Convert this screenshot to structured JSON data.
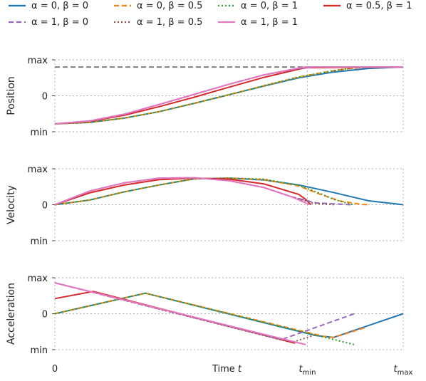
{
  "chart_data": {
    "type": "line",
    "xlabel": "Time t",
    "x_ticks": [
      "0",
      "t_min",
      "t_max"
    ],
    "x_range": [
      0,
      1
    ],
    "t_min": 0.725,
    "t_max": 1.0,
    "grid": true,
    "legend_placement": "top, above plots",
    "legend": [
      {
        "key": "s1",
        "label": "α = 0, β = 0",
        "color": "#1f77b4",
        "style": "solid"
      },
      {
        "key": "s2",
        "label": "α = 0, β = 0.5",
        "color": "#ff7f0e",
        "style": "dashed"
      },
      {
        "key": "s3",
        "label": "α = 0, β = 1",
        "color": "#2ca02c",
        "style": "dotted"
      },
      {
        "key": "s4",
        "label": "α = 0.5, β = 1",
        "color": "#d62728",
        "style": "solid"
      },
      {
        "key": "s5",
        "label": "α = 1, β = 0",
        "color": "#9467bd",
        "style": "dashed"
      },
      {
        "key": "s6",
        "label": "α = 1, β = 0.5",
        "color": "#8c564b",
        "style": "dotted"
      },
      {
        "key": "s7",
        "label": "α = 1, β = 1",
        "color": "#e377c2",
        "style": "solid"
      }
    ],
    "panels": [
      {
        "ylabel": "Position",
        "y_ticks": [
          "max",
          "0",
          "min"
        ],
        "y_range": [
          -1,
          1
        ],
        "reference_line": {
          "y": 0.8,
          "color": "#7f7f7f",
          "style": "dashed"
        },
        "series": [
          {
            "key": "s1",
            "points": [
              [
                0,
                -0.78
              ],
              [
                0.1,
                -0.74
              ],
              [
                0.2,
                -0.62
              ],
              [
                0.3,
                -0.44
              ],
              [
                0.4,
                -0.21
              ],
              [
                0.5,
                0.03
              ],
              [
                0.6,
                0.27
              ],
              [
                0.7,
                0.5
              ],
              [
                0.8,
                0.66
              ],
              [
                0.9,
                0.76
              ],
              [
                1.0,
                0.8
              ]
            ]
          },
          {
            "key": "s2",
            "points": [
              [
                0,
                -0.78
              ],
              [
                0.1,
                -0.74
              ],
              [
                0.2,
                -0.62
              ],
              [
                0.3,
                -0.44
              ],
              [
                0.4,
                -0.21
              ],
              [
                0.5,
                0.03
              ],
              [
                0.6,
                0.28
              ],
              [
                0.7,
                0.52
              ],
              [
                0.8,
                0.7
              ],
              [
                0.88,
                0.79
              ],
              [
                1.0,
                0.8
              ]
            ]
          },
          {
            "key": "s3",
            "points": [
              [
                0,
                -0.78
              ],
              [
                0.1,
                -0.74
              ],
              [
                0.2,
                -0.62
              ],
              [
                0.3,
                -0.44
              ],
              [
                0.4,
                -0.21
              ],
              [
                0.5,
                0.03
              ],
              [
                0.6,
                0.28
              ],
              [
                0.7,
                0.52
              ],
              [
                0.8,
                0.7
              ],
              [
                0.86,
                0.78
              ],
              [
                1.0,
                0.8
              ]
            ]
          },
          {
            "key": "s4",
            "points": [
              [
                0,
                -0.78
              ],
              [
                0.1,
                -0.71
              ],
              [
                0.2,
                -0.54
              ],
              [
                0.3,
                -0.3
              ],
              [
                0.4,
                -0.04
              ],
              [
                0.5,
                0.24
              ],
              [
                0.6,
                0.51
              ],
              [
                0.7,
                0.74
              ],
              [
                0.72,
                0.78
              ],
              [
                1.0,
                0.8
              ]
            ]
          },
          {
            "key": "s5",
            "points": [
              [
                0,
                -0.78
              ],
              [
                0.1,
                -0.7
              ],
              [
                0.2,
                -0.51
              ],
              [
                0.3,
                -0.24
              ],
              [
                0.4,
                0.04
              ],
              [
                0.5,
                0.32
              ],
              [
                0.6,
                0.58
              ],
              [
                0.7,
                0.76
              ],
              [
                0.75,
                0.8
              ],
              [
                1.0,
                0.8
              ]
            ]
          },
          {
            "key": "s6",
            "points": [
              [
                0,
                -0.78
              ],
              [
                0.1,
                -0.7
              ],
              [
                0.2,
                -0.51
              ],
              [
                0.3,
                -0.24
              ],
              [
                0.4,
                0.04
              ],
              [
                0.5,
                0.32
              ],
              [
                0.6,
                0.58
              ],
              [
                0.7,
                0.76
              ],
              [
                0.73,
                0.8
              ],
              [
                1.0,
                0.8
              ]
            ]
          },
          {
            "key": "s7",
            "points": [
              [
                0,
                -0.78
              ],
              [
                0.1,
                -0.7
              ],
              [
                0.2,
                -0.51
              ],
              [
                0.3,
                -0.24
              ],
              [
                0.4,
                0.04
              ],
              [
                0.5,
                0.32
              ],
              [
                0.6,
                0.58
              ],
              [
                0.7,
                0.77
              ],
              [
                0.72,
                0.8
              ],
              [
                1.0,
                0.8
              ]
            ]
          }
        ]
      },
      {
        "ylabel": "Velocity",
        "y_ticks": [
          "max",
          "0",
          "min"
        ],
        "y_range": [
          -1,
          1
        ],
        "reference_line": null,
        "series": [
          {
            "key": "s1",
            "points": [
              [
                0,
                0
              ],
              [
                0.1,
                0.13
              ],
              [
                0.2,
                0.36
              ],
              [
                0.3,
                0.55
              ],
              [
                0.4,
                0.72
              ],
              [
                0.5,
                0.74
              ],
              [
                0.6,
                0.69
              ],
              [
                0.7,
                0.55
              ],
              [
                0.8,
                0.34
              ],
              [
                0.9,
                0.11
              ],
              [
                1.0,
                0
              ]
            ]
          },
          {
            "key": "s2",
            "points": [
              [
                0,
                0
              ],
              [
                0.1,
                0.13
              ],
              [
                0.2,
                0.36
              ],
              [
                0.3,
                0.55
              ],
              [
                0.4,
                0.72
              ],
              [
                0.5,
                0.74
              ],
              [
                0.6,
                0.7
              ],
              [
                0.7,
                0.52
              ],
              [
                0.76,
                0.3
              ],
              [
                0.82,
                0.1
              ],
              [
                0.88,
                0.01
              ],
              [
                0.9,
                0
              ]
            ]
          },
          {
            "key": "s3",
            "points": [
              [
                0,
                0
              ],
              [
                0.1,
                0.13
              ],
              [
                0.2,
                0.36
              ],
              [
                0.3,
                0.55
              ],
              [
                0.4,
                0.72
              ],
              [
                0.5,
                0.74
              ],
              [
                0.6,
                0.71
              ],
              [
                0.7,
                0.54
              ],
              [
                0.76,
                0.32
              ],
              [
                0.8,
                0.15
              ],
              [
                0.84,
                0.04
              ],
              [
                0.86,
                0
              ]
            ]
          },
          {
            "key": "s4",
            "points": [
              [
                0,
                0
              ],
              [
                0.1,
                0.33
              ],
              [
                0.2,
                0.55
              ],
              [
                0.3,
                0.7
              ],
              [
                0.4,
                0.74
              ],
              [
                0.5,
                0.71
              ],
              [
                0.6,
                0.58
              ],
              [
                0.7,
                0.29
              ],
              [
                0.72,
                0.15
              ],
              [
                0.735,
                0
              ]
            ]
          },
          {
            "key": "s5",
            "points": [
              [
                0,
                0
              ],
              [
                0.1,
                0.38
              ],
              [
                0.2,
                0.61
              ],
              [
                0.3,
                0.74
              ],
              [
                0.4,
                0.75
              ],
              [
                0.5,
                0.67
              ],
              [
                0.6,
                0.48
              ],
              [
                0.68,
                0.22
              ],
              [
                0.75,
                0.05
              ],
              [
                0.85,
                0
              ]
            ]
          },
          {
            "key": "s6",
            "points": [
              [
                0,
                0
              ],
              [
                0.1,
                0.38
              ],
              [
                0.2,
                0.61
              ],
              [
                0.3,
                0.74
              ],
              [
                0.4,
                0.75
              ],
              [
                0.5,
                0.67
              ],
              [
                0.6,
                0.48
              ],
              [
                0.68,
                0.22
              ],
              [
                0.74,
                0.05
              ],
              [
                0.8,
                0
              ]
            ]
          },
          {
            "key": "s7",
            "points": [
              [
                0,
                0
              ],
              [
                0.1,
                0.38
              ],
              [
                0.2,
                0.61
              ],
              [
                0.3,
                0.74
              ],
              [
                0.4,
                0.75
              ],
              [
                0.5,
                0.67
              ],
              [
                0.6,
                0.48
              ],
              [
                0.68,
                0.22
              ],
              [
                0.72,
                0.05
              ],
              [
                0.73,
                0
              ]
            ]
          }
        ]
      },
      {
        "ylabel": "Acceleration",
        "y_ticks": [
          "max",
          "0",
          "min"
        ],
        "y_range": [
          -1,
          1
        ],
        "reference_line": null,
        "series": [
          {
            "key": "s1",
            "points": [
              [
                0,
                0
              ],
              [
                0.26,
                0.57
              ],
              [
                0.75,
                -0.61
              ],
              [
                0.8,
                -0.66
              ],
              [
                1.0,
                0
              ]
            ]
          },
          {
            "key": "s2",
            "points": [
              [
                0,
                0
              ],
              [
                0.26,
                0.57
              ],
              [
                0.78,
                -0.65
              ],
              [
                0.8,
                -0.66
              ],
              [
                0.89,
                -0.39
              ]
            ]
          },
          {
            "key": "s3",
            "points": [
              [
                0,
                0
              ],
              [
                0.26,
                0.57
              ],
              [
                0.86,
                -0.86
              ]
            ]
          },
          {
            "key": "s4",
            "points": [
              [
                0,
                0.42
              ],
              [
                0.11,
                0.62
              ],
              [
                0.69,
                -0.82
              ]
            ]
          },
          {
            "key": "s5",
            "points": [
              [
                0,
                0.86
              ],
              [
                0.65,
                -0.72
              ],
              [
                0.86,
                0
              ]
            ]
          },
          {
            "key": "s6",
            "points": [
              [
                0,
                0.86
              ],
              [
                0.68,
                -0.8
              ],
              [
                0.75,
                -0.58
              ]
            ]
          },
          {
            "key": "s7",
            "points": [
              [
                0,
                0.86
              ],
              [
                0.72,
                -0.86
              ]
            ]
          }
        ]
      }
    ]
  }
}
